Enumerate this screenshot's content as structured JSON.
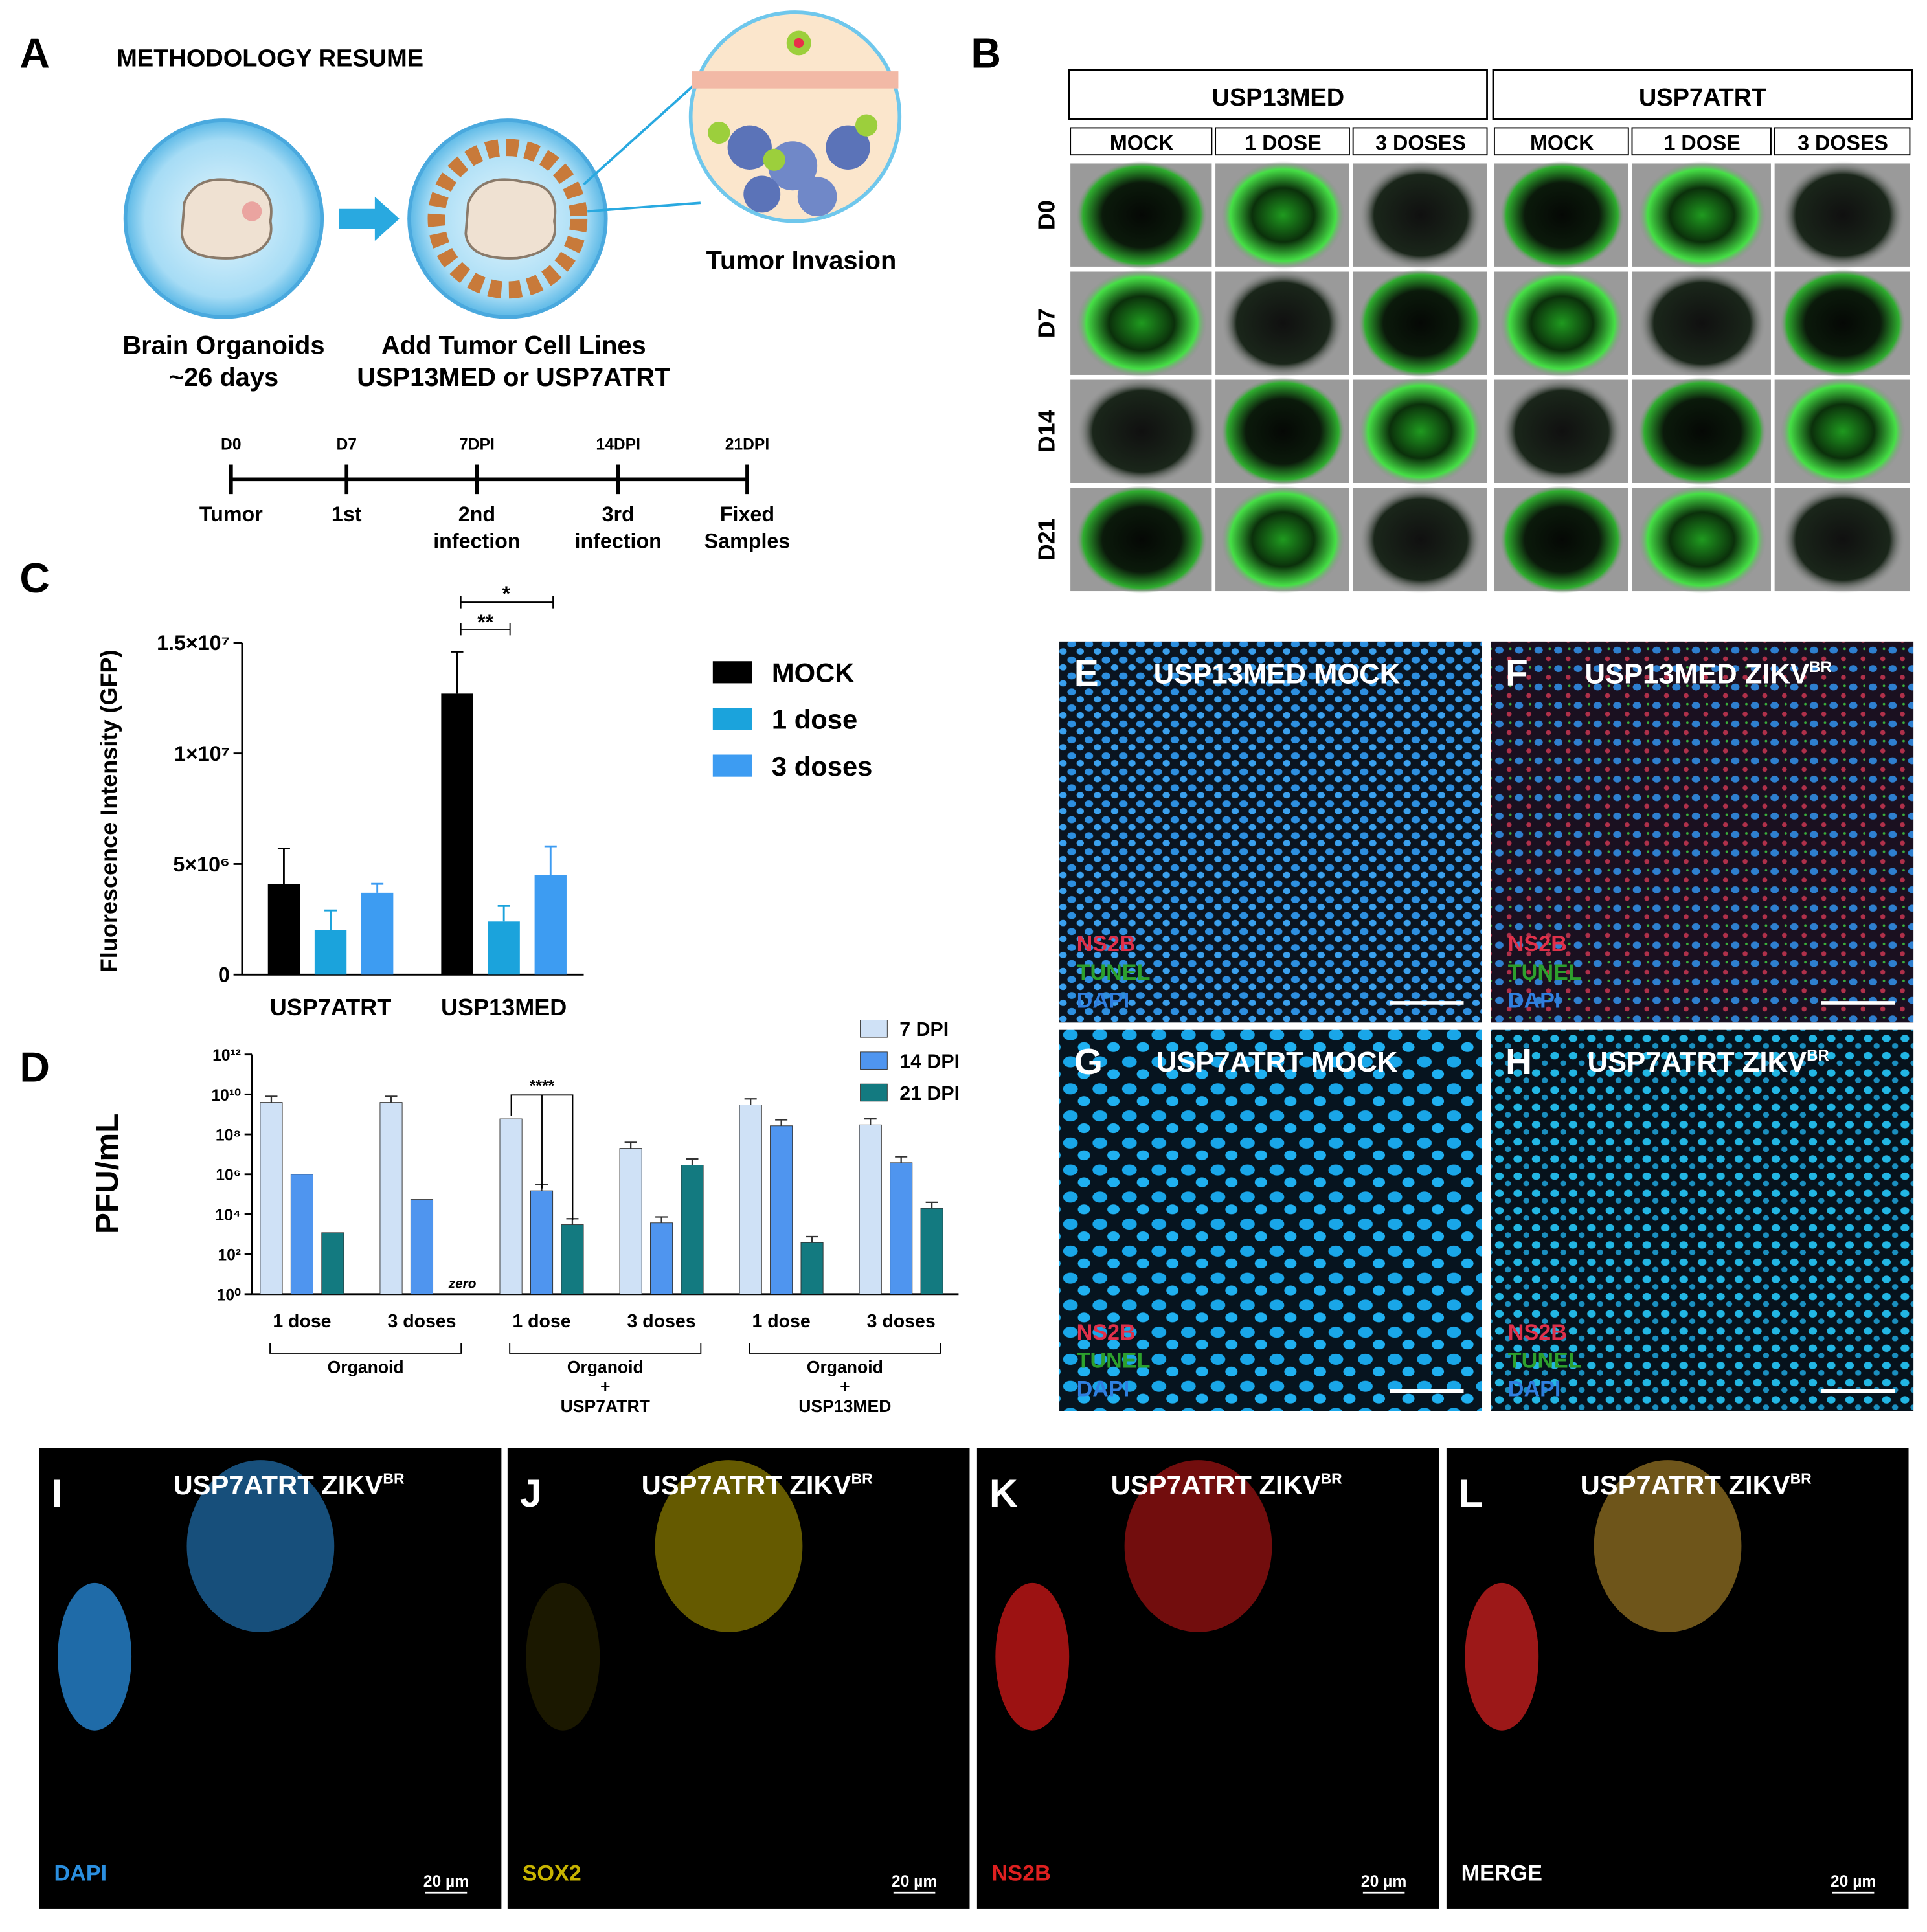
{
  "panel_a": {
    "letter": "A",
    "title": "METHODOLOGY RESUME",
    "organoid_label": [
      "Brain Organoids",
      "~26 days"
    ],
    "add_label": [
      "Add Tumor Cell Lines",
      "USP13MED or USP7ATRT"
    ],
    "invasion_label": "Tumor Invasion",
    "timeline": {
      "top": [
        "D0",
        "D7",
        "7DPI",
        "14DPI",
        "21DPI"
      ],
      "bottom": [
        [
          "Tumor"
        ],
        [
          "1st"
        ],
        [
          "2nd",
          "infection"
        ],
        [
          "3rd",
          "infection"
        ],
        [
          "Fixed",
          "Samples"
        ]
      ]
    }
  },
  "panel_b": {
    "letter": "B",
    "groups": [
      {
        "name": "USP13MED",
        "columns": [
          "MOCK",
          "1 DOSE",
          "3 DOSES"
        ]
      },
      {
        "name": "USP7ATRT",
        "columns": [
          "MOCK",
          "1 DOSE",
          "3 DOSES"
        ]
      }
    ],
    "rows": [
      "D0",
      "D7",
      "D14",
      "D21"
    ]
  },
  "chart_data": [
    {
      "letter": "C",
      "type": "bar",
      "ylabel": "Fluorescence Intensity (GFP)",
      "categories": [
        "USP7ATRT",
        "USP13MED"
      ],
      "series": [
        {
          "name": "MOCK",
          "color": "#000000",
          "values": [
            4100000,
            12700000
          ],
          "errors": [
            1600000,
            1900000
          ]
        },
        {
          "name": "1 dose",
          "color": "#1ba3dc",
          "values": [
            2000000,
            2400000
          ],
          "errors": [
            900000,
            700000
          ]
        },
        {
          "name": "3 doses",
          "color": "#3d9cf2",
          "values": [
            3700000,
            4500000
          ],
          "errors": [
            400000,
            1300000
          ]
        }
      ],
      "ylim": [
        0,
        15000000
      ],
      "yticks": [
        0,
        {
          "value": 5000000,
          "label": "5×10⁶"
        },
        {
          "value": 10000000,
          "label": "1×10⁷"
        },
        {
          "value": 15000000,
          "label": "1.5×10⁷"
        }
      ],
      "annotations": [
        "**",
        "*"
      ]
    },
    {
      "letter": "D",
      "type": "bar",
      "log_scale": true,
      "ylabel": "PFU/mL",
      "categories": [
        "1 dose",
        "3 doses",
        "1 dose",
        "3 doses",
        "1 dose",
        "3 doses"
      ],
      "group_labels": [
        [
          "Organoid"
        ],
        [
          "Organoid",
          "+",
          "USP7ATRT"
        ],
        [
          "Organoid",
          "+",
          "USP13MED"
        ]
      ],
      "series": [
        {
          "name": "7 DPI",
          "color": "#cfe1f6",
          "values": [
            4000000000,
            4000000000,
            600000000,
            20000000,
            3000000000,
            300000000
          ],
          "errors": [
            4000000000,
            4000000000,
            null,
            20000000,
            3000000000,
            300000000
          ]
        },
        {
          "name": "14 DPI",
          "color": "#4f95ef",
          "values": [
            1000000,
            55000,
            150000,
            3700,
            270000000,
            3800000
          ],
          "errors": [
            null,
            null,
            150000,
            3700,
            270000000,
            3800000
          ]
        },
        {
          "name": "21 DPI",
          "color": "#137a80",
          "values": [
            1200,
            0,
            3000,
            2900000,
            380,
            20000
          ],
          "value_labels": [
            null,
            "zero",
            null,
            null,
            null,
            null
          ],
          "errors": [
            null,
            null,
            3000,
            2900000,
            380,
            20000
          ]
        }
      ],
      "ylim": [
        1,
        1000000000000
      ],
      "yticks": [
        {
          "value": 1,
          "label": "10⁰"
        },
        {
          "value": 100,
          "label": "10²"
        },
        {
          "value": 10000,
          "label": "10⁴"
        },
        {
          "value": 1000000,
          "label": "10⁶"
        },
        {
          "value": 100000000,
          "label": "10⁸"
        },
        {
          "value": 10000000000,
          "label": "10¹⁰"
        },
        {
          "value": 1000000000000,
          "label": "10¹²"
        }
      ],
      "annotations": [
        "****"
      ]
    }
  ],
  "staining_panels": [
    {
      "letter": "E",
      "title": "USP13MED MOCK",
      "channels": [
        "NS2B",
        "TUNEL",
        "DAPI"
      ]
    },
    {
      "letter": "F",
      "title": "USP13MED ZIKV",
      "superscript": "BR",
      "channels": [
        "NS2B",
        "TUNEL",
        "DAPI"
      ]
    },
    {
      "letter": "G",
      "title": "USP7ATRT MOCK",
      "channels": [
        "NS2B",
        "TUNEL",
        "DAPI"
      ]
    },
    {
      "letter": "H",
      "title": "USP7ATRT ZIKV",
      "superscript": "BR",
      "channels": [
        "NS2B",
        "TUNEL",
        "DAPI"
      ]
    }
  ],
  "channel_panels": [
    {
      "letter": "I",
      "title": "USP7ATRT ZIKV",
      "superscript": "BR",
      "channel": "DAPI",
      "scale": "20 µm"
    },
    {
      "letter": "J",
      "title": "USP7ATRT ZIKV",
      "superscript": "BR",
      "channel": "SOX2",
      "scale": "20 µm"
    },
    {
      "letter": "K",
      "title": "USP7ATRT ZIKV",
      "superscript": "BR",
      "channel": "NS2B",
      "scale": "20 µm"
    },
    {
      "letter": "L",
      "title": "USP7ATRT ZIKV",
      "superscript": "BR",
      "channel": "MERGE",
      "scale": "20 µm"
    }
  ]
}
